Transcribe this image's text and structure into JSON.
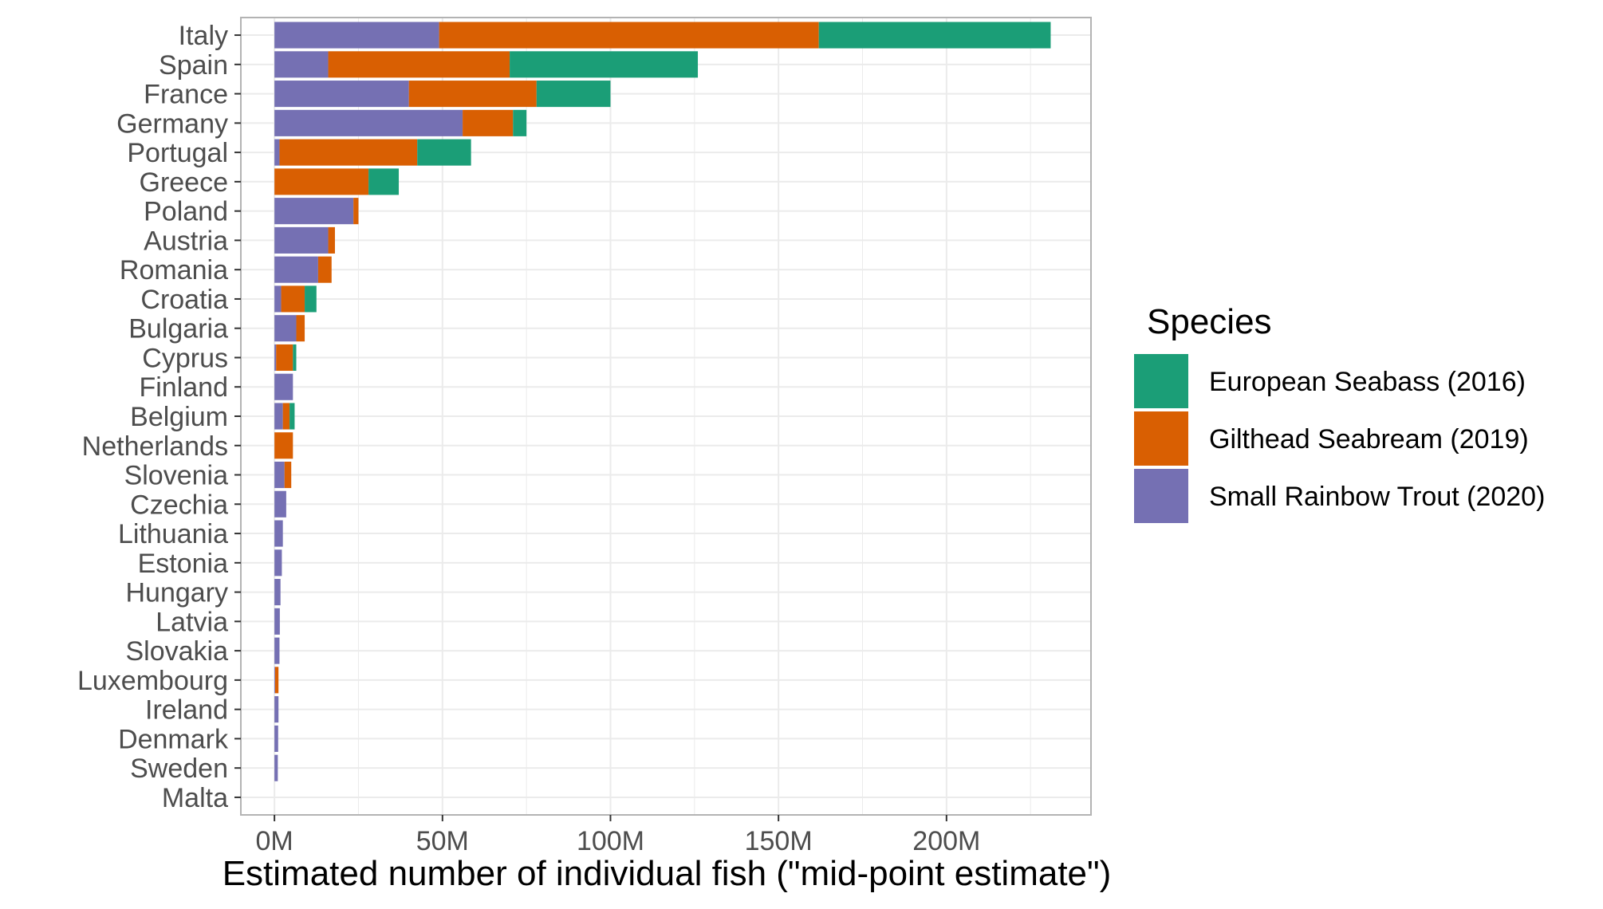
{
  "chart_data": {
    "type": "bar",
    "orientation": "horizontal",
    "stacked": true,
    "xlabel": "Estimated number of individual fish (\"mid-point estimate\")",
    "ylabel": "",
    "xlim": [
      -10,
      243
    ],
    "x_ticks": [
      0,
      50,
      100,
      150,
      200
    ],
    "x_tick_labels": [
      "0M",
      "50M",
      "100M",
      "150M",
      "200M"
    ],
    "grid": true,
    "legend_position": "right",
    "legend_title": "Species",
    "categories": [
      "Italy",
      "Spain",
      "France",
      "Germany",
      "Portugal",
      "Greece",
      "Poland",
      "Austria",
      "Romania",
      "Croatia",
      "Bulgaria",
      "Cyprus",
      "Finland",
      "Belgium",
      "Netherlands",
      "Slovenia",
      "Czechia",
      "Lithuania",
      "Estonia",
      "Hungary",
      "Latvia",
      "Slovakia",
      "Luxembourg",
      "Ireland",
      "Denmark",
      "Sweden",
      "Malta"
    ],
    "stack_order": [
      "Small Rainbow Trout (2020)",
      "Gilthead Seabream (2019)",
      "European Seabass (2016)"
    ],
    "series": [
      {
        "name": "European Seabass (2016)",
        "color": "#1b9e77",
        "values": [
          69,
          56,
          22,
          4,
          16,
          9,
          0,
          0,
          0,
          3.5,
          0,
          1,
          0,
          1.5,
          0,
          0,
          0,
          0,
          0,
          0,
          0,
          0,
          0,
          0,
          0,
          0,
          0
        ]
      },
      {
        "name": "Gilthead Seabream (2019)",
        "color": "#d95f02",
        "values": [
          113,
          54,
          38,
          15,
          41,
          28,
          1.5,
          2,
          4,
          7,
          2.5,
          5,
          0,
          2,
          5.5,
          2,
          0,
          0,
          0,
          0,
          0,
          0,
          1,
          0,
          0,
          0,
          0
        ]
      },
      {
        "name": "Small Rainbow Trout (2020)",
        "color": "#7570b3",
        "values": [
          49,
          16,
          40,
          56,
          1.5,
          0,
          23.5,
          16,
          13,
          2,
          6.5,
          0.5,
          5.5,
          2.5,
          0,
          3,
          3.5,
          2.5,
          2.2,
          1.8,
          1.6,
          1.5,
          0.2,
          1.2,
          1.1,
          1,
          0
        ]
      }
    ]
  }
}
